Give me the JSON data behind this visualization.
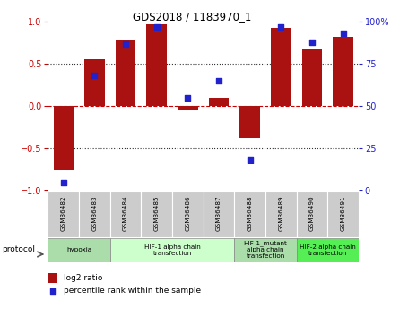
{
  "title": "GDS2018 / 1183970_1",
  "samples": [
    "GSM36482",
    "GSM36483",
    "GSM36484",
    "GSM36485",
    "GSM36486",
    "GSM36487",
    "GSM36488",
    "GSM36489",
    "GSM36490",
    "GSM36491"
  ],
  "log2_ratio": [
    -0.75,
    0.55,
    0.78,
    0.97,
    -0.04,
    0.1,
    -0.38,
    0.93,
    0.68,
    0.82
  ],
  "percentile_rank": [
    5,
    68,
    87,
    97,
    55,
    65,
    18,
    97,
    88,
    93
  ],
  "bar_color": "#aa1111",
  "dot_color": "#2222cc",
  "protocol_groups": [
    {
      "label": "hypoxia",
      "start": 0,
      "end": 1,
      "color": "#aaddaa"
    },
    {
      "label": "HIF-1 alpha chain\ntransfection",
      "start": 2,
      "end": 5,
      "color": "#ccffcc"
    },
    {
      "label": "HIF-1_mutant\nalpha chain\ntransfection",
      "start": 6,
      "end": 7,
      "color": "#aaddaa"
    },
    {
      "label": "HIF-2 alpha chain\ntransfection",
      "start": 8,
      "end": 9,
      "color": "#55ee55"
    }
  ],
  "ylim": [
    -1,
    1
  ],
  "yticks_left": [
    -1,
    -0.5,
    0,
    0.5,
    1
  ],
  "yticks_right": [
    0,
    25,
    50,
    75,
    100
  ],
  "yticks_right_labels": [
    "0",
    "25",
    "50",
    "75",
    "100%"
  ],
  "hline_color": "#cc0000",
  "dotline_color": "#333333",
  "bg_color": "#ffffff",
  "plot_bg_color": "#ffffff",
  "tick_label_bg": "#cccccc",
  "legend_bar_label": "log2 ratio",
  "legend_dot_label": "percentile rank within the sample",
  "protocol_label": "protocol"
}
